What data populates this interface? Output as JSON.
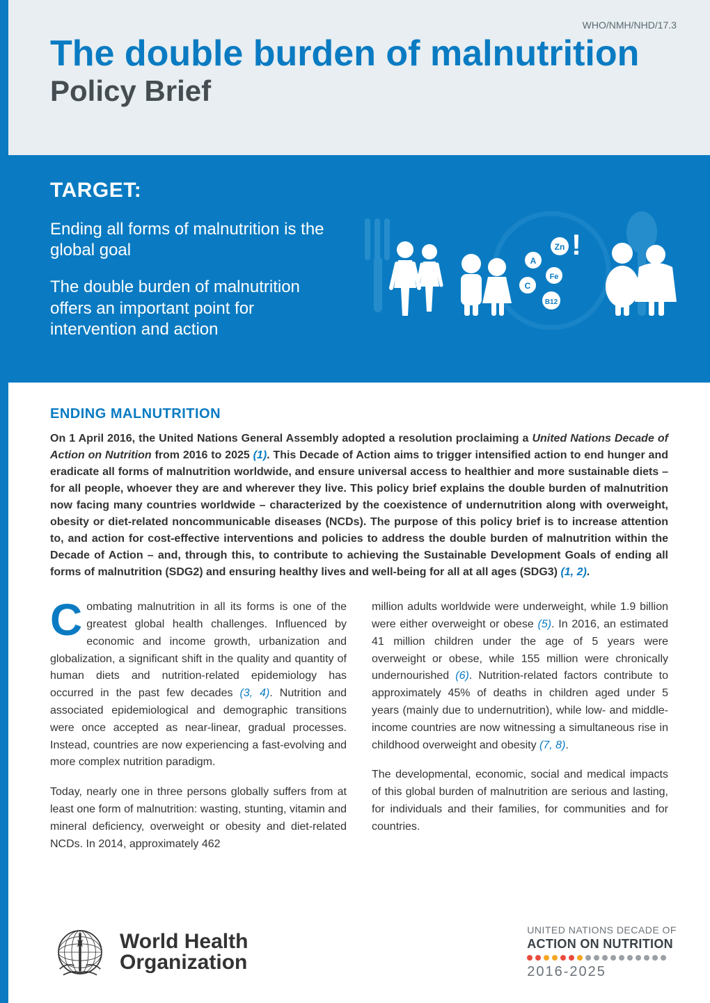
{
  "colors": {
    "brand_blue": "#0a7bc2",
    "band_blue": "#0a7bc2",
    "header_bg": "#e8eef1",
    "text": "#333333",
    "muted": "#5a6a72",
    "ref": "#0a7bc2",
    "white": "#ffffff",
    "icon_light": "#6fb8e2"
  },
  "header": {
    "doc_ref": "WHO/NMH/NHD/17.3",
    "title": "The double burden of malnutrition",
    "subtitle": "Policy Brief"
  },
  "target": {
    "heading": "TARGET:",
    "line1": "Ending all forms of malnutrition is the global goal",
    "line2": "The double burden of malnutrition offers an important point for intervention and action",
    "nutrient_badges": [
      "A",
      "Zn",
      "C",
      "Fe",
      "B12"
    ],
    "exclaim": "!"
  },
  "section": {
    "heading": "ENDING MALNUTRITION",
    "lead_parts": {
      "p1": "On 1 April 2016, the United Nations General Assembly adopted a resolution proclaiming a ",
      "em1": "United Nations Decade of Action on Nutrition",
      "p2": " from 2016 to 2025 ",
      "ref1": "(1)",
      "p3": ". This Decade of Action aims to trigger intensified action to end hunger and eradicate all forms of malnutrition worldwide, and ensure universal access to healthier and more sustainable diets – for all people, whoever they are and wherever they live. This policy brief explains the ",
      "b1": "double burden of malnutrition",
      "p4": " now facing many countries worldwide – characterized by the coexistence of undernutrition along with overweight, obesity or diet-related noncommunicable diseases (NCDs). The purpose of this policy brief is to increase attention to, and action for cost-effective interventions and policies to address the double burden of malnutrition within the Decade of Action – and, through this, to contribute to achieving the Sustainable Development Goals of ending all forms of malnutrition (SDG2) and ensuring healthy lives and well-being for all at all ages (SDG3) ",
      "ref2": "(1, 2)",
      "p5": "."
    },
    "col1": {
      "dropcap": "C",
      "p1a": "ombating malnutrition in all its forms is one of the greatest global health challenges. Influenced by economic and income growth, urbanization and globalization, a significant shift in the quality and quantity of human diets and nutrition-related epidemiology has occurred in the past few decades ",
      "ref34": "(3, 4)",
      "p1b": ". Nutrition and associated epidemiological and demographic transitions were once accepted as near-linear, gradual processes. Instead, countries are now experiencing a fast-evolving and more complex nutrition paradigm.",
      "p2": "Today, nearly one in three persons globally suffers from at least one form of malnutrition: wasting, stunting, vitamin and mineral deficiency, overweight or obesity and diet-related NCDs. In 2014, approximately 462"
    },
    "col2": {
      "p1a": "million adults worldwide were underweight, while 1.9 billion were either overweight or obese ",
      "ref5": "(5)",
      "p1b": ".  In 2016, an estimated 41 million children under the age of 5 years were overweight or obese, while 155 million were chronically undernourished ",
      "ref6": "(6)",
      "p1c": ". Nutrition-related factors contribute to approximately 45% of deaths in children aged under 5 years (mainly due to undernutrition), while low- and middle-income countries are now witnessing a simultaneous rise in childhood overweight and obesity ",
      "ref78": "(7, 8)",
      "p1d": ".",
      "p2": "The developmental, economic, social and medical impacts of this global burden of malnutrition are serious and lasting, for individuals and their families, for communities and for countries."
    }
  },
  "footer": {
    "who_line1": "World Health",
    "who_line2": "Organization",
    "un_line1": "UNITED NATIONS DECADE OF",
    "un_line2": "ACTION ON NUTRITION",
    "un_line3": "2016-2025",
    "dot_colors": [
      "#e94b3c",
      "#e94b3c",
      "#f5a623",
      "#f5a623",
      "#e94b3c",
      "#e94b3c",
      "#f5a623",
      "#9aa0a6",
      "#9aa0a6",
      "#9aa0a6",
      "#9aa0a6",
      "#9aa0a6",
      "#9aa0a6",
      "#9aa0a6",
      "#9aa0a6",
      "#9aa0a6",
      "#9aa0a6"
    ]
  }
}
